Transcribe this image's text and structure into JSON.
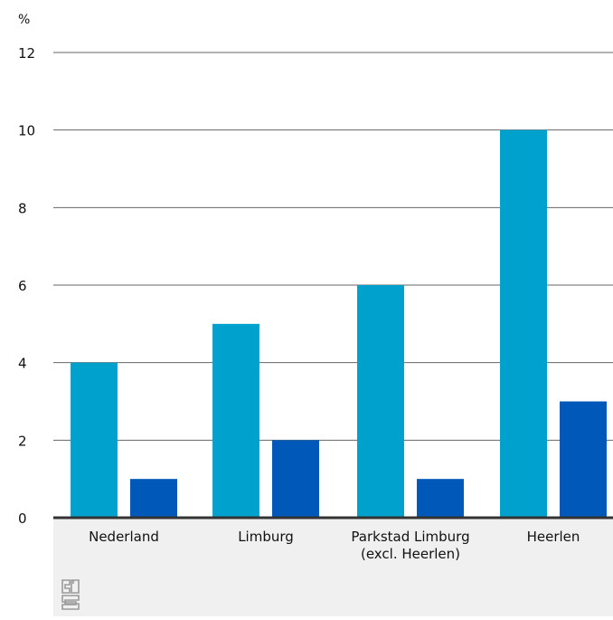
{
  "colors": {
    "series1": "#00a1cd",
    "series2": "#0058b8",
    "gridline": "#666666",
    "baseline": "#333333",
    "category_band": "#f0f0f0",
    "text": "#111111",
    "logo": "#9a9a9a"
  },
  "logo": {
    "text": "cbs"
  },
  "chart_data": {
    "type": "bar",
    "unit_label": "%",
    "categories": [
      [
        "Nederland"
      ],
      [
        "Limburg"
      ],
      [
        "Parkstad Limburg",
        "(excl. Heerlen)"
      ],
      [
        "Heerlen"
      ]
    ],
    "series": [
      {
        "values": [
          4,
          5,
          6,
          10
        ]
      },
      {
        "values": [
          1,
          2,
          1,
          3
        ]
      }
    ],
    "ylim": [
      0,
      12
    ],
    "yticks": [
      0,
      2,
      4,
      6,
      8,
      10,
      12
    ],
    "grid": true,
    "legend": "none"
  }
}
